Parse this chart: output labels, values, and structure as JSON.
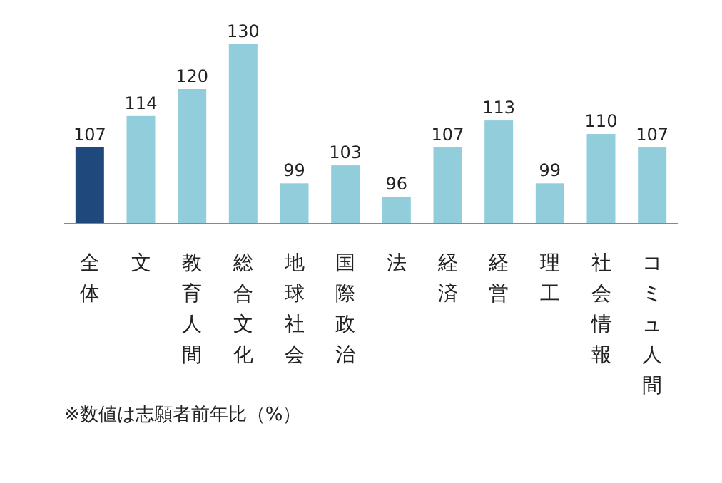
{
  "chart_data": {
    "type": "bar",
    "categories": [
      "全体",
      "文",
      "教育人間",
      "総合文化",
      "地球社会",
      "国際政治",
      "法",
      "経済",
      "経営",
      "理工",
      "社会情報",
      "コミュ人間"
    ],
    "values": [
      107,
      114,
      120,
      130,
      99,
      103,
      96,
      107,
      113,
      99,
      110,
      107
    ],
    "colors": [
      "#1f497d",
      "#92cddc",
      "#92cddc",
      "#92cddc",
      "#92cddc",
      "#92cddc",
      "#92cddc",
      "#92cddc",
      "#92cddc",
      "#92cddc",
      "#92cddc",
      "#92cddc"
    ],
    "ylim": [
      90,
      130
    ],
    "data_labels": true,
    "annotations": [
      "※数値は志願者前年比（%）"
    ]
  }
}
